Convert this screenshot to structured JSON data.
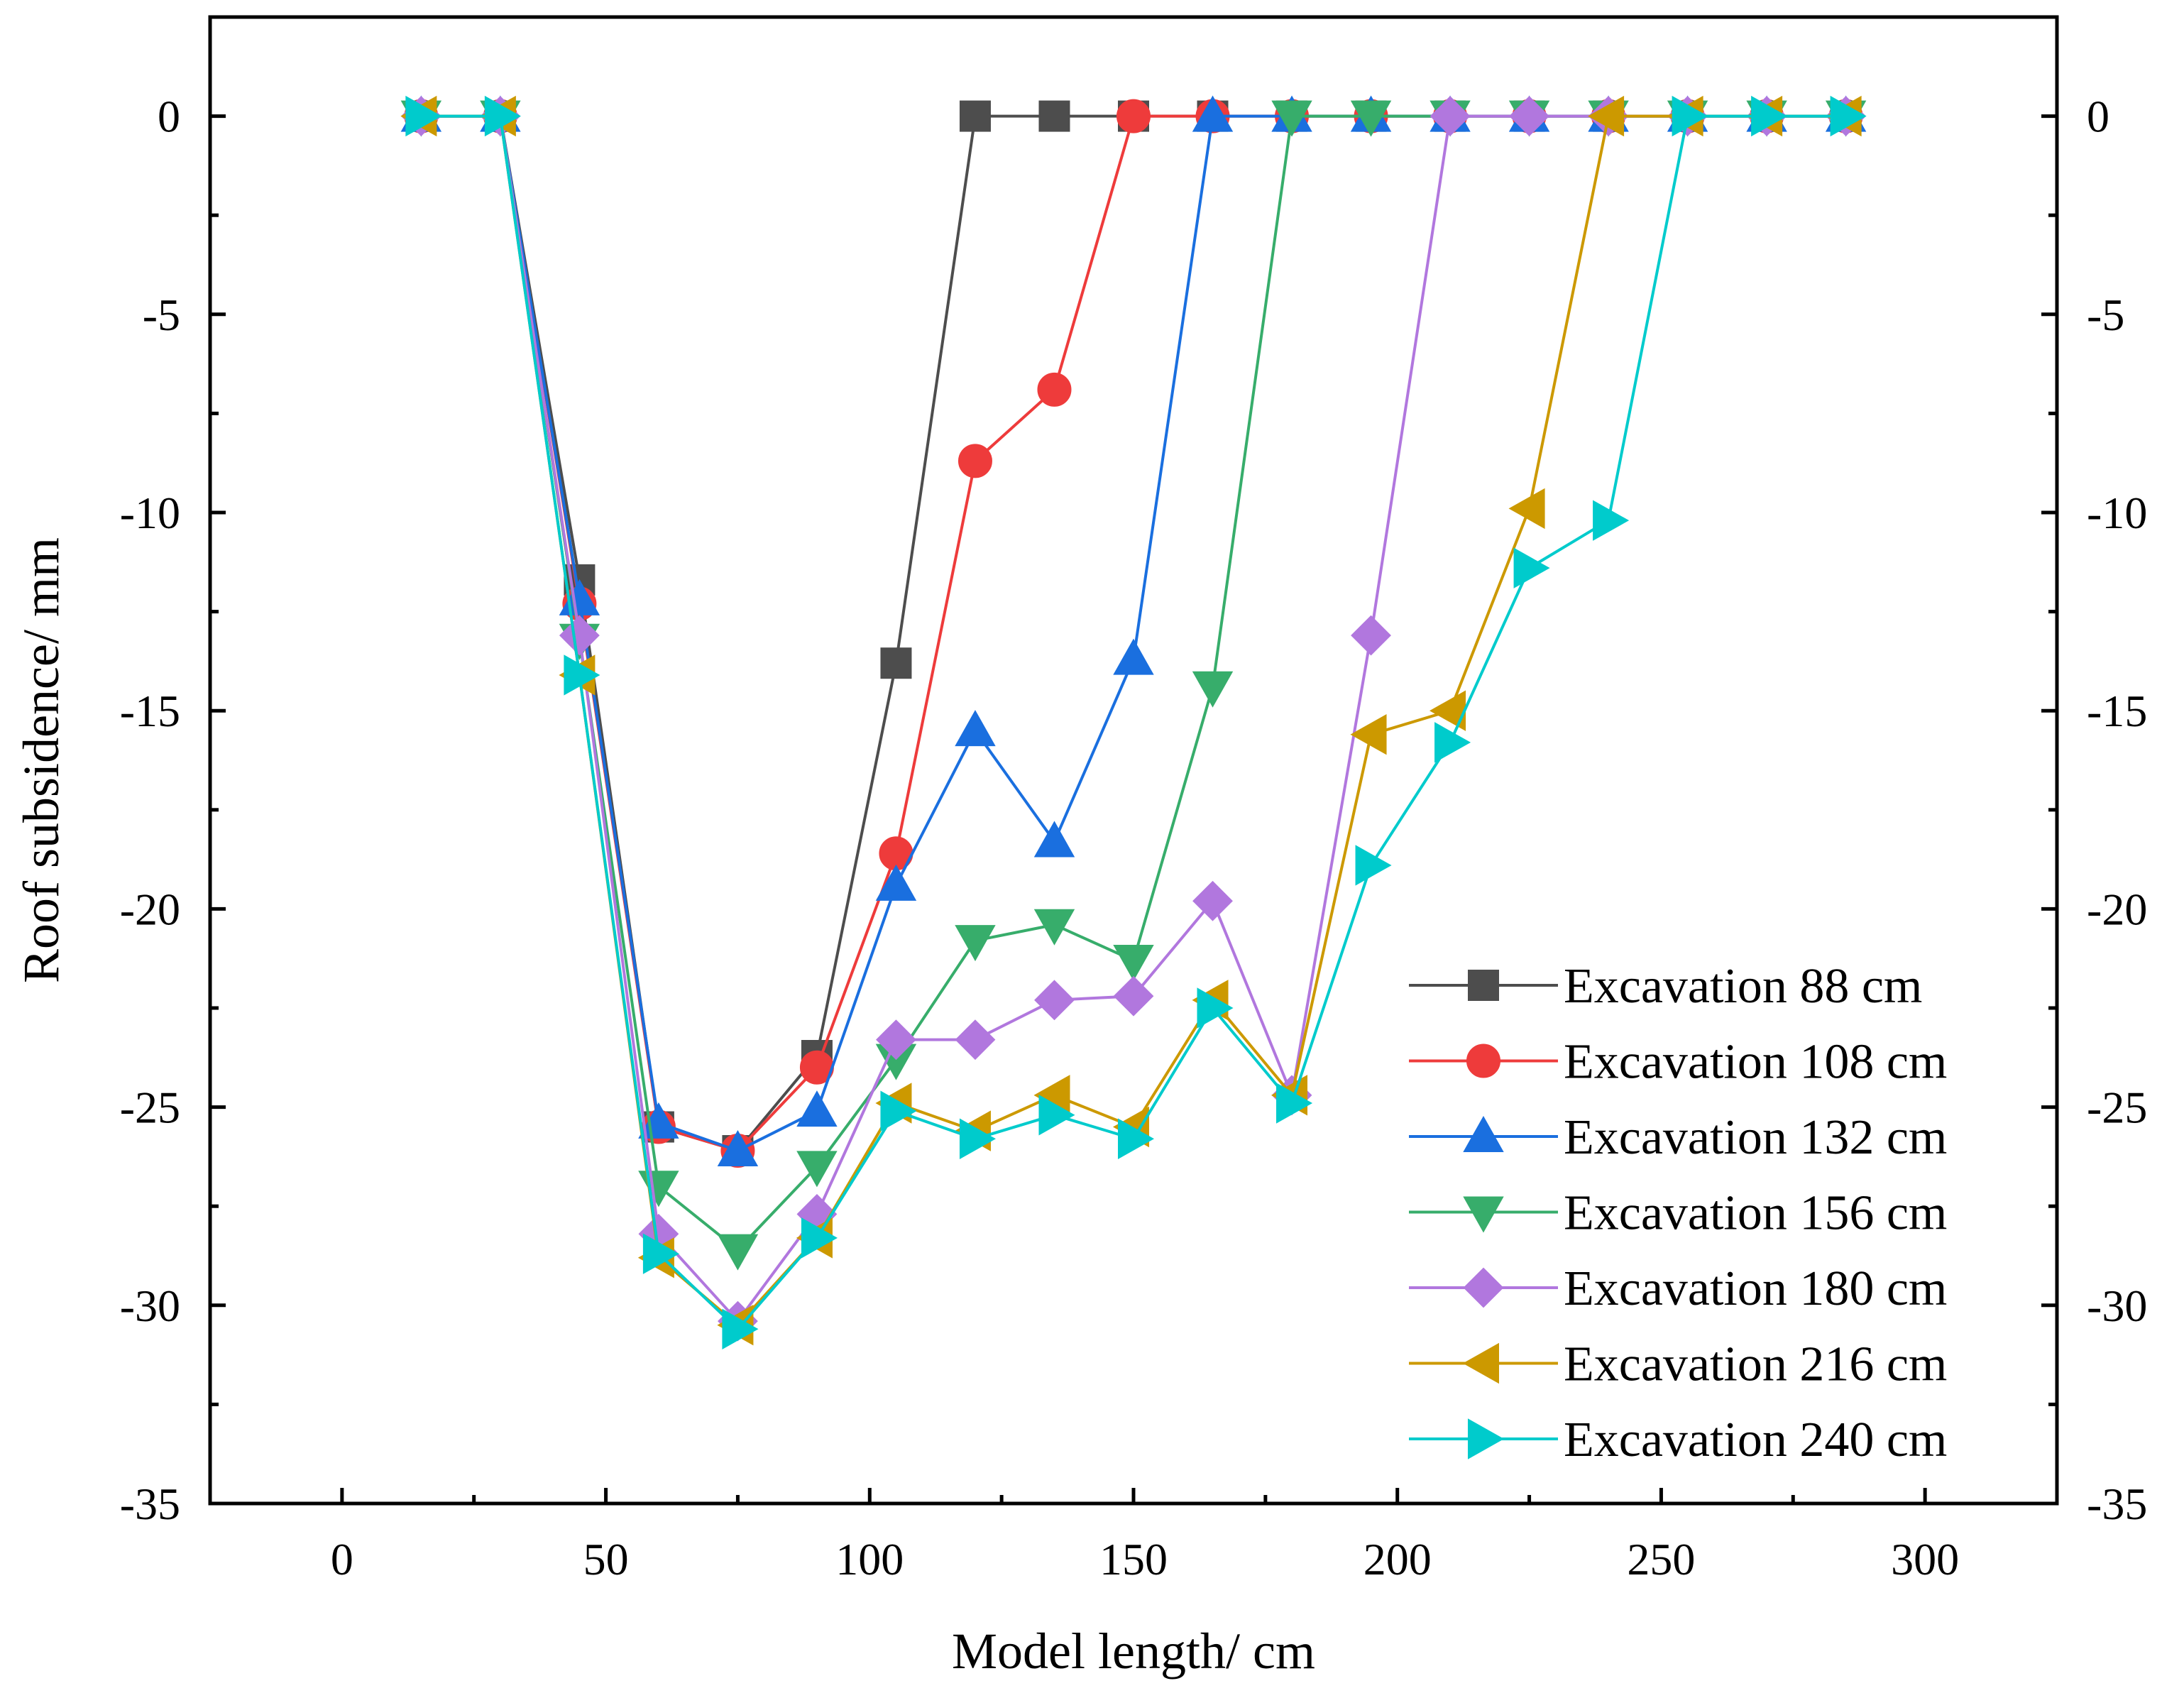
{
  "chart_data": {
    "type": "line",
    "title": "",
    "xlabel": "Model length/ cm",
    "ylabel": "Roof subsidence/ mm",
    "xlim": [
      -25,
      325
    ],
    "ylim": [
      -35,
      2.5
    ],
    "xticks": [
      0,
      50,
      100,
      150,
      200,
      250,
      300
    ],
    "yticks": [
      0,
      -5,
      -10,
      -15,
      -20,
      -25,
      -30,
      -35
    ],
    "x_tick_labels": [
      "0",
      "50",
      "100",
      "150",
      "200",
      "250",
      "300"
    ],
    "y_tick_labels": [
      "0",
      "-5",
      "-10",
      "-15",
      "-20",
      "-25",
      "-30",
      "-35"
    ],
    "right_axis_mirrored": true,
    "grid": false,
    "legend_position": "bottom-right",
    "series": [
      {
        "name": "Excavation 88 cm",
        "color": "#4d4d4d",
        "marker": "square",
        "x": [
          15,
          30,
          45,
          60,
          75,
          90,
          105,
          120,
          135,
          150,
          165,
          180,
          195,
          210,
          225,
          240,
          255,
          270,
          285
        ],
        "y": [
          0,
          0,
          -11.7,
          -25.5,
          -26.1,
          -23.7,
          -13.8,
          0,
          0,
          0,
          0,
          0,
          0,
          0,
          0,
          0,
          0,
          0,
          0
        ]
      },
      {
        "name": "Excavation 108 cm",
        "color": "#ee3b3b",
        "marker": "circle",
        "x": [
          15,
          30,
          45,
          60,
          75,
          90,
          105,
          120,
          135,
          150,
          165,
          180,
          195,
          210,
          225,
          240,
          255,
          270,
          285
        ],
        "y": [
          0,
          0,
          -12.3,
          -25.5,
          -26.1,
          -24.0,
          -18.6,
          -8.7,
          -6.9,
          0,
          0,
          0,
          0,
          0,
          0,
          0,
          0,
          0,
          0
        ]
      },
      {
        "name": "Excavation 132 cm",
        "color": "#1a6fdf",
        "marker": "triangle-up",
        "x": [
          15,
          30,
          45,
          60,
          75,
          90,
          105,
          120,
          135,
          150,
          165,
          180,
          195,
          210,
          225,
          240,
          255,
          270,
          285
        ],
        "y": [
          0,
          0,
          -12.2,
          -25.4,
          -26.1,
          -25.1,
          -19.4,
          -15.5,
          -18.3,
          -13.7,
          0,
          0,
          0,
          0,
          0,
          0,
          0,
          0,
          0
        ]
      },
      {
        "name": "Excavation 156 cm",
        "color": "#37ad6b",
        "marker": "triangle-down",
        "x": [
          15,
          30,
          45,
          60,
          75,
          90,
          105,
          120,
          135,
          150,
          165,
          180,
          195,
          210,
          225,
          240,
          255,
          270,
          285
        ],
        "y": [
          0,
          0,
          -13.2,
          -27.0,
          -28.6,
          -26.5,
          -23.8,
          -20.8,
          -20.4,
          -21.3,
          -14.4,
          0,
          0,
          0,
          0,
          0,
          0,
          0,
          0
        ]
      },
      {
        "name": "Excavation 180 cm",
        "color": "#b177de",
        "marker": "diamond",
        "x": [
          15,
          30,
          45,
          60,
          75,
          90,
          105,
          120,
          135,
          150,
          165,
          180,
          195,
          210,
          225,
          240,
          255,
          270,
          285
        ],
        "y": [
          0,
          0,
          -13.1,
          -28.2,
          -30.4,
          -27.7,
          -23.3,
          -23.3,
          -22.3,
          -22.2,
          -19.8,
          -24.7,
          -13.1,
          0,
          0,
          0,
          0,
          0,
          0
        ]
      },
      {
        "name": "Excavation 216 cm",
        "color": "#cc9900",
        "marker": "triangle-left",
        "x": [
          15,
          30,
          45,
          60,
          75,
          90,
          105,
          120,
          135,
          150,
          165,
          180,
          195,
          210,
          225,
          240,
          255,
          270,
          285
        ],
        "y": [
          0,
          0,
          -14.1,
          -28.8,
          -30.5,
          -28.3,
          -24.9,
          -25.6,
          -24.7,
          -25.5,
          -22.3,
          -24.7,
          -15.6,
          -15.0,
          -9.9,
          0,
          0,
          0,
          0
        ]
      },
      {
        "name": "Excavation 240 cm",
        "color": "#00cbcc",
        "marker": "triangle-right",
        "x": [
          15,
          30,
          45,
          60,
          75,
          90,
          105,
          120,
          135,
          150,
          165,
          180,
          195,
          210,
          225,
          240,
          255,
          270,
          285
        ],
        "y": [
          0,
          0,
          -14.1,
          -28.7,
          -30.6,
          -28.3,
          -25.1,
          -25.8,
          -25.2,
          -25.8,
          -22.5,
          -24.9,
          -18.9,
          -15.8,
          -11.4,
          -10.2,
          0,
          0,
          0
        ]
      }
    ]
  }
}
